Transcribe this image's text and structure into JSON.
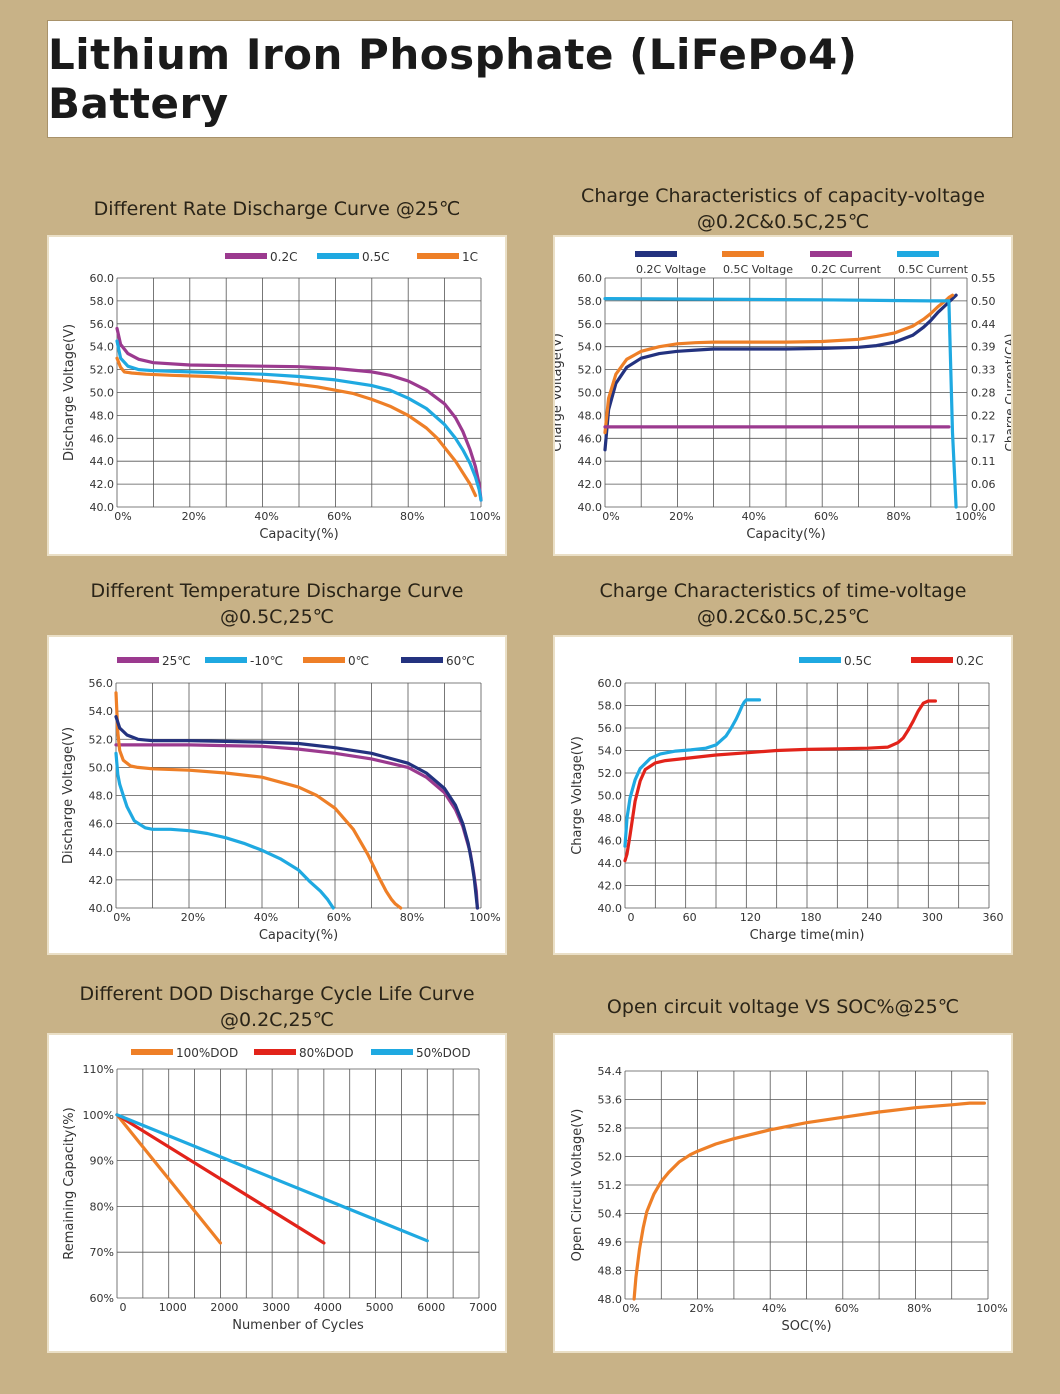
{
  "title": "Lithium Iron Phosphate (LiFePo4) Battery",
  "chart_data": [
    {
      "id": "c1",
      "type": "line",
      "title": "Different Rate Discharge Curve @25℃",
      "subtitle": "",
      "xlabel": "Capacity(%)",
      "ylabel": "Discharge Voltage(V)",
      "xlim": [
        0,
        100
      ],
      "ylim": [
        40,
        60
      ],
      "xticks": [
        0,
        20,
        40,
        60,
        80,
        100
      ],
      "xtick_labels": [
        "0%",
        "20%",
        "40%",
        "60%",
        "80%",
        "100%"
      ],
      "yticks": [
        40,
        42,
        44,
        46,
        48,
        50,
        52,
        54,
        56,
        58,
        60
      ],
      "ytick_labels": [
        "40.0",
        "42.0",
        "44.0",
        "46.0",
        "48.0",
        "50.0",
        "52.0",
        "54.0",
        "56.0",
        "58.0",
        "60.0"
      ],
      "grid": true,
      "legend_position": "top",
      "series": [
        {
          "name": "0.2C",
          "color": "#9b3a8f",
          "x": [
            0,
            1,
            3,
            6,
            10,
            20,
            30,
            40,
            50,
            60,
            70,
            75,
            80,
            85,
            90,
            93,
            95,
            97,
            98.5,
            99.5,
            100
          ],
          "y": [
            55.6,
            54.2,
            53.4,
            52.9,
            52.6,
            52.4,
            52.35,
            52.3,
            52.25,
            52.1,
            51.8,
            51.5,
            51,
            50.2,
            49,
            47.8,
            46.6,
            45,
            43.5,
            42,
            40.6
          ]
        },
        {
          "name": "0.5C",
          "color": "#1fa9e1",
          "x": [
            0,
            1,
            3,
            6,
            10,
            20,
            30,
            40,
            50,
            60,
            70,
            75,
            80,
            85,
            90,
            93,
            95,
            97,
            98.5,
            99.5,
            100
          ],
          "y": [
            54.5,
            53,
            52.3,
            52,
            51.9,
            51.8,
            51.7,
            51.6,
            51.4,
            51.1,
            50.6,
            50.2,
            49.5,
            48.6,
            47.2,
            46,
            45,
            43.8,
            42.6,
            41.5,
            40.6
          ]
        },
        {
          "name": "1C",
          "color": "#ee7f27",
          "x": [
            0,
            1,
            2,
            4,
            8,
            15,
            25,
            35,
            45,
            55,
            65,
            70,
            75,
            80,
            85,
            88,
            90,
            93,
            95,
            97,
            98.5
          ],
          "y": [
            53,
            52.2,
            51.8,
            51.7,
            51.6,
            51.5,
            51.4,
            51.2,
            50.9,
            50.5,
            49.9,
            49.4,
            48.8,
            48,
            46.9,
            46,
            45.2,
            44,
            43,
            42,
            41
          ]
        }
      ]
    },
    {
      "id": "c2",
      "type": "line",
      "title": "Charge Characteristics of capacity-voltage",
      "subtitle": "@0.2C&0.5C,25℃",
      "xlabel": "Capacity(%)",
      "ylabel": "Charge Voltage(V)",
      "y2label": "Charge Current(CA)",
      "xlim": [
        0,
        100
      ],
      "ylim": [
        40,
        60
      ],
      "xticks": [
        0,
        20,
        40,
        60,
        80,
        100
      ],
      "xtick_labels": [
        "0%",
        "20%",
        "40%",
        "60%",
        "80%",
        "100%"
      ],
      "yticks": [
        40,
        42,
        44,
        46,
        48,
        50,
        52,
        54,
        56,
        58,
        60
      ],
      "ytick_labels": [
        "40.0",
        "42.0",
        "44.0",
        "46.0",
        "48.0",
        "50.0",
        "52.0",
        "54.0",
        "56.0",
        "58.0",
        "60.0"
      ],
      "y2ticks": [
        "0.00",
        "0.06",
        "0.11",
        "0.17",
        "0.22",
        "0.28",
        "0.33",
        "0.39",
        "0.44",
        "0.50",
        "0.55"
      ],
      "grid": true,
      "legend_position": "top",
      "series": [
        {
          "name": "0.2C Voltage",
          "color": "#23327f",
          "x": [
            0,
            1,
            3,
            6,
            10,
            15,
            20,
            25,
            30,
            40,
            50,
            60,
            70,
            75,
            80,
            85,
            88,
            90,
            92,
            94,
            96,
            97
          ],
          "y": [
            45,
            48.5,
            50.8,
            52.2,
            53,
            53.4,
            53.6,
            53.7,
            53.8,
            53.8,
            53.8,
            53.85,
            53.95,
            54.1,
            54.4,
            55,
            55.7,
            56.3,
            57,
            57.6,
            58.2,
            58.5
          ]
        },
        {
          "name": "0.5C Voltage",
          "color": "#ee7f27",
          "x": [
            0,
            1,
            3,
            6,
            10,
            15,
            20,
            25,
            30,
            40,
            50,
            60,
            70,
            75,
            80,
            85,
            88,
            90,
            92,
            94,
            95,
            96
          ],
          "y": [
            46.5,
            49.5,
            51.6,
            52.9,
            53.6,
            54,
            54.25,
            54.35,
            54.4,
            54.4,
            54.4,
            54.45,
            54.65,
            54.9,
            55.2,
            55.8,
            56.4,
            56.9,
            57.5,
            58,
            58.3,
            58.5
          ]
        },
        {
          "name": "0.2C Current",
          "color": "#9b3a8f",
          "x": [
            0,
            95
          ],
          "y": [
            47,
            47
          ]
        },
        {
          "name": "0.5C Current",
          "color": "#1fa9e1",
          "x": [
            0,
            30,
            60,
            90,
            95,
            96,
            97
          ],
          "y": [
            58.2,
            58.15,
            58.1,
            58,
            58,
            46.5,
            40
          ]
        }
      ]
    },
    {
      "id": "c3",
      "type": "line",
      "title": "Different Temperature Discharge Curve",
      "subtitle": "@0.5C,25℃",
      "xlabel": "Capacity(%)",
      "ylabel": "Discharge Voltage(V)",
      "xlim": [
        0,
        100
      ],
      "ylim": [
        40,
        56
      ],
      "xticks": [
        0,
        20,
        40,
        60,
        80,
        100
      ],
      "xtick_labels": [
        "0%",
        "20%",
        "40%",
        "60%",
        "80%",
        "100%"
      ],
      "yticks": [
        40,
        42,
        44,
        46,
        48,
        50,
        52,
        54,
        56
      ],
      "ytick_labels": [
        "40.0",
        "42.0",
        "44.0",
        "46.0",
        "48.0",
        "50.0",
        "52.0",
        "54.0",
        "56.0"
      ],
      "grid": true,
      "legend_position": "top",
      "series": [
        {
          "name": "25℃",
          "color": "#9b3a8f",
          "x": [
            0,
            3,
            10,
            20,
            30,
            40,
            50,
            60,
            70,
            80,
            85,
            90,
            93,
            95,
            97,
            98,
            98.7,
            99
          ],
          "y": [
            51.6,
            51.6,
            51.6,
            51.6,
            51.55,
            51.5,
            51.3,
            51,
            50.6,
            50,
            49.3,
            48.2,
            47,
            45.8,
            44,
            42.5,
            41.2,
            40
          ]
        },
        {
          "name": "-10℃",
          "color": "#1fa9e1",
          "x": [
            0,
            0.5,
            1,
            2,
            3,
            5,
            8,
            10,
            15,
            20,
            25,
            30,
            35,
            40,
            45,
            50,
            53,
            56,
            58,
            59.5
          ],
          "y": [
            51,
            49.5,
            48.8,
            48,
            47.2,
            46.2,
            45.7,
            45.6,
            45.6,
            45.5,
            45.3,
            45,
            44.6,
            44.1,
            43.5,
            42.7,
            41.9,
            41.2,
            40.6,
            40
          ]
        },
        {
          "name": "0℃",
          "color": "#ee7f27",
          "x": [
            0,
            0.5,
            1,
            2,
            4,
            6,
            10,
            20,
            30,
            40,
            50,
            55,
            60,
            65,
            69,
            72,
            74,
            75.5,
            76.5,
            77.5,
            78
          ],
          "y": [
            55.3,
            52.5,
            51.2,
            50.5,
            50.1,
            50,
            49.9,
            49.8,
            49.6,
            49.3,
            48.6,
            48,
            47.1,
            45.6,
            43.8,
            42.2,
            41.2,
            40.6,
            40.3,
            40.1,
            40
          ]
        },
        {
          "name": "60℃",
          "color": "#23327f",
          "x": [
            0,
            1,
            3,
            6,
            10,
            20,
            30,
            40,
            50,
            60,
            70,
            80,
            85,
            90,
            93,
            95,
            96.5,
            97.5,
            98.2,
            98.6,
            99
          ],
          "y": [
            53.6,
            52.8,
            52.3,
            52,
            51.9,
            51.9,
            51.85,
            51.8,
            51.7,
            51.4,
            51,
            50.3,
            49.6,
            48.5,
            47.3,
            46,
            44.6,
            43.2,
            42,
            41,
            40
          ]
        }
      ]
    },
    {
      "id": "c4",
      "type": "line",
      "title": "Charge Characteristics of time-voltage",
      "subtitle": "@0.2C&0.5C,25℃",
      "xlabel": "Charge time(min)",
      "ylabel": "Charge Voltage(V)",
      "xlim": [
        0,
        360
      ],
      "ylim": [
        40,
        60
      ],
      "xticks": [
        0,
        60,
        120,
        180,
        240,
        300,
        360
      ],
      "xtick_labels": [
        "0",
        "60",
        "120",
        "180",
        "240",
        "300",
        "360"
      ],
      "yticks": [
        40,
        42,
        44,
        46,
        48,
        50,
        52,
        54,
        56,
        58,
        60
      ],
      "ytick_labels": [
        "40.0",
        "42.0",
        "44.0",
        "46.0",
        "48.0",
        "50.0",
        "52.0",
        "54.0",
        "56.0",
        "58.0",
        "60.0"
      ],
      "grid": true,
      "legend_position": "top-right",
      "series": [
        {
          "name": "0.5C",
          "color": "#1fa9e1",
          "x": [
            0,
            2,
            5,
            10,
            15,
            25,
            35,
            50,
            65,
            80,
            90,
            100,
            105,
            110,
            113,
            116,
            118,
            120,
            125,
            133
          ],
          "y": [
            45.5,
            48,
            49.8,
            51.4,
            52.4,
            53.3,
            53.7,
            53.95,
            54.05,
            54.2,
            54.5,
            55.3,
            56,
            56.8,
            57.4,
            58,
            58.3,
            58.5,
            58.5,
            58.5
          ]
        },
        {
          "name": "0.2C",
          "color": "#e2231a",
          "x": [
            0,
            2,
            5,
            10,
            15,
            20,
            30,
            40,
            60,
            90,
            120,
            150,
            180,
            210,
            240,
            260,
            270,
            275,
            280,
            285,
            290,
            295,
            300,
            307
          ],
          "y": [
            44.2,
            44.8,
            46.5,
            49.5,
            51.3,
            52.3,
            52.9,
            53.1,
            53.3,
            53.6,
            53.8,
            54,
            54.1,
            54.15,
            54.2,
            54.3,
            54.7,
            55.1,
            55.8,
            56.6,
            57.5,
            58.2,
            58.4,
            58.4
          ]
        }
      ]
    },
    {
      "id": "c5",
      "type": "line",
      "title": "Different DOD Discharge Cycle Life Curve",
      "subtitle": "@0.2C,25℃",
      "xlabel": "Numenber of Cycles",
      "ylabel": "Remaining Capacity(%)",
      "xlim": [
        0,
        7000
      ],
      "ylim": [
        60,
        110
      ],
      "xticks": [
        0,
        1000,
        2000,
        3000,
        4000,
        5000,
        6000,
        7000
      ],
      "xtick_labels": [
        "0",
        "1000",
        "2000",
        "3000",
        "4000",
        "5000",
        "6000",
        "7000"
      ],
      "yticks": [
        60,
        70,
        80,
        90,
        100,
        110
      ],
      "ytick_labels": [
        "60%",
        "70%",
        "80%",
        "90%",
        "100%",
        "110%"
      ],
      "grid": true,
      "legend_position": "top",
      "series": [
        {
          "name": "100%DOD",
          "color": "#ee7f27",
          "x": [
            0,
            2000
          ],
          "y": [
            100,
            72
          ]
        },
        {
          "name": "80%DOD",
          "color": "#e2231a",
          "x": [
            0,
            4000
          ],
          "y": [
            100,
            72
          ]
        },
        {
          "name": "50%DOD",
          "color": "#1fa9e1",
          "x": [
            0,
            6000
          ],
          "y": [
            100,
            72.5
          ]
        }
      ]
    },
    {
      "id": "c6",
      "type": "line",
      "title": "Open circuit voltage VS SOC%@25℃",
      "subtitle": "",
      "xlabel": "SOC(%)",
      "ylabel": "Open Circuit Voltage(V)",
      "xlim": [
        0,
        100
      ],
      "ylim": [
        48,
        54.4
      ],
      "xticks": [
        0,
        20,
        40,
        60,
        80,
        100
      ],
      "xtick_labels": [
        "0%",
        "20%",
        "40%",
        "60%",
        "80%",
        "100%"
      ],
      "yticks": [
        48,
        48.8,
        49.6,
        50.4,
        51.2,
        52,
        52.8,
        53.6,
        54.4
      ],
      "ytick_labels": [
        "48.0",
        "48.8",
        "49.6",
        "50.4",
        "51.2",
        "52.0",
        "52.8",
        "53.6",
        "54.4"
      ],
      "grid": true,
      "legend_position": "none",
      "series": [
        {
          "name": "",
          "color": "#ee7f27",
          "x": [
            2.5,
            3,
            4,
            5,
            6,
            8,
            10,
            12,
            15,
            18,
            20,
            25,
            30,
            40,
            50,
            60,
            70,
            80,
            90,
            95,
            99
          ],
          "y": [
            48,
            48.6,
            49.4,
            50,
            50.45,
            50.95,
            51.3,
            51.55,
            51.85,
            52.05,
            52.15,
            52.35,
            52.5,
            52.75,
            52.95,
            53.1,
            53.25,
            53.37,
            53.45,
            53.5,
            53.5
          ]
        }
      ]
    }
  ]
}
